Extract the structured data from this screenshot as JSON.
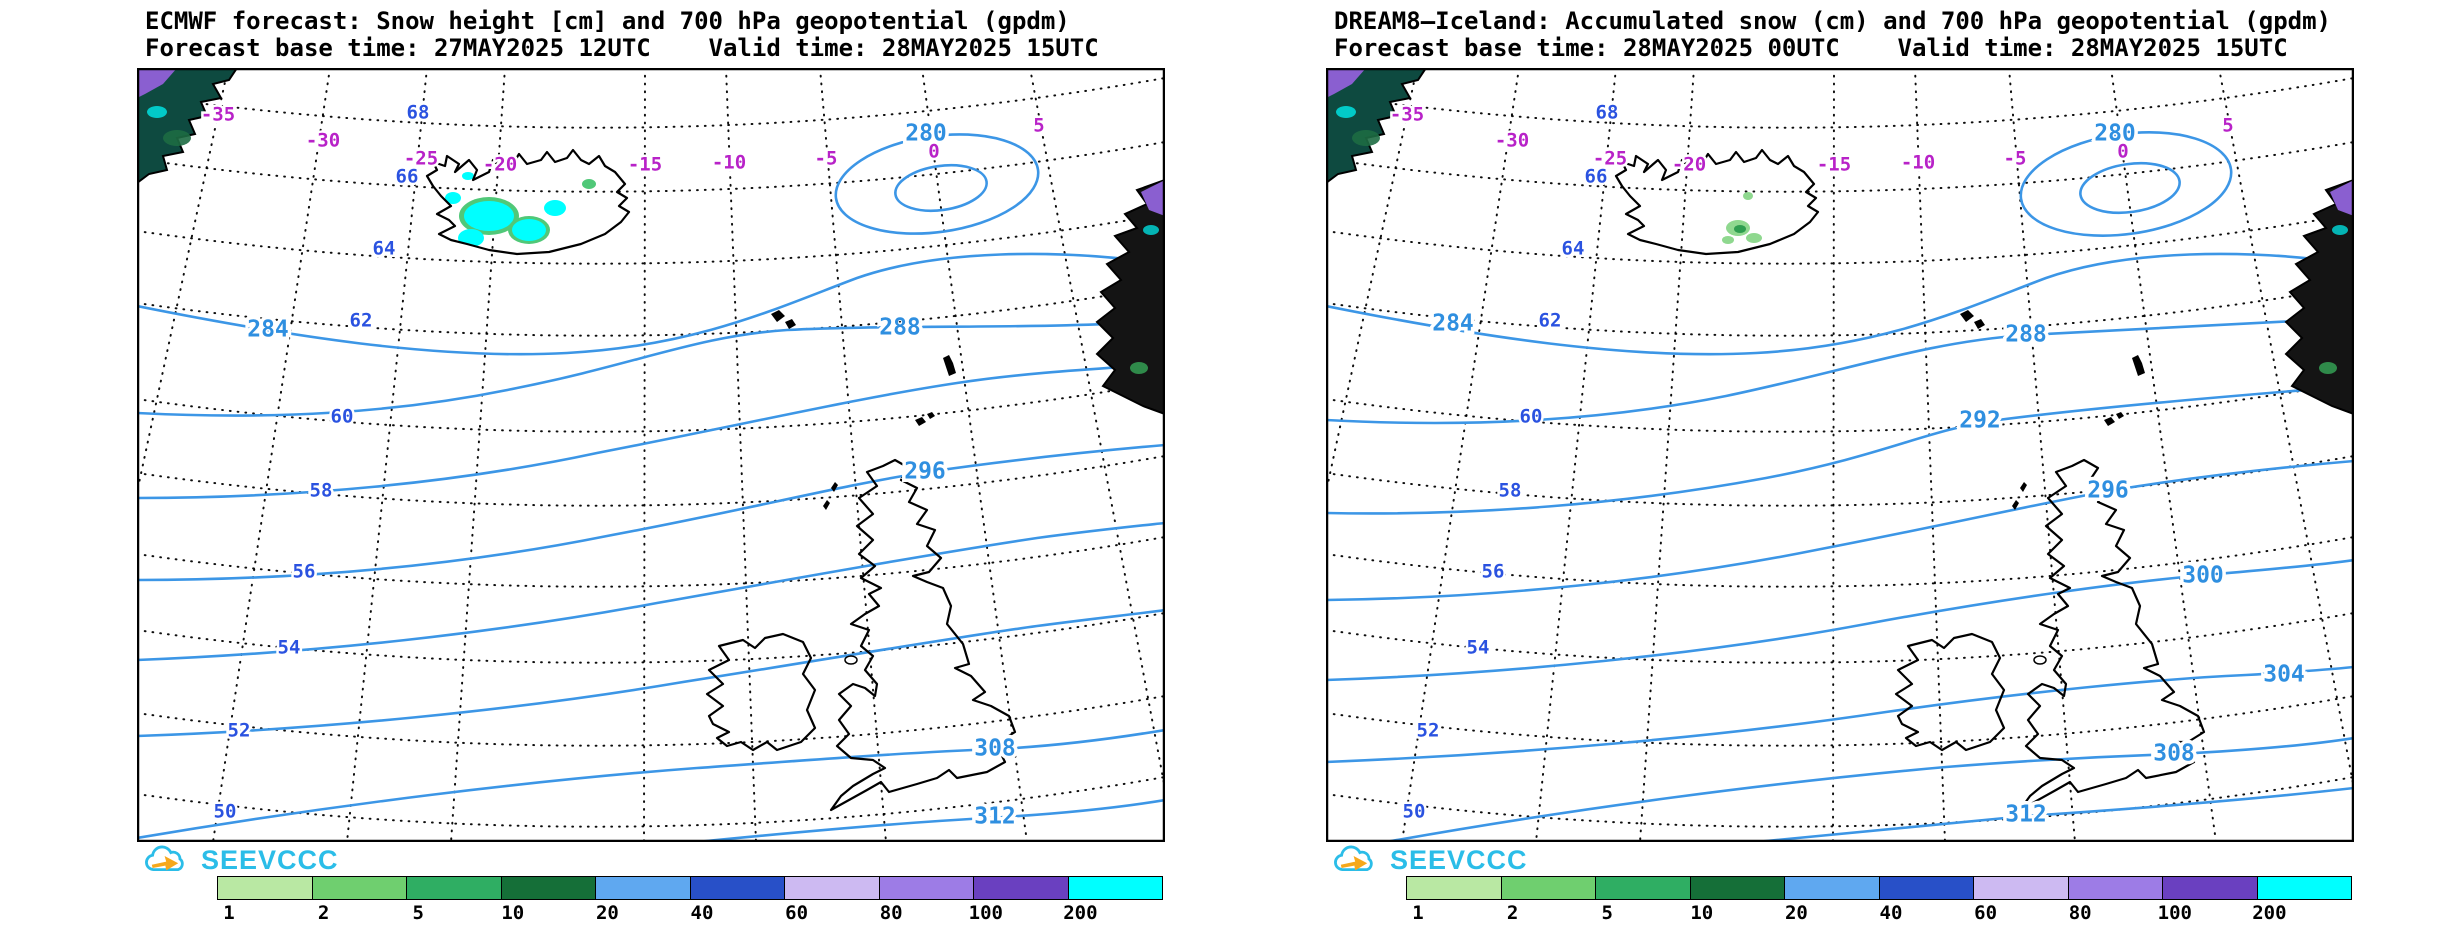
{
  "panels": [
    {
      "title_line1": "ECMWF forecast: Snow height [cm] and 700 hPa geopotential (gpdm)",
      "title_line2": "Forecast base time: 27MAY2025 12UTC    Valid time: 28MAY2025 15UTC",
      "contour_labels": {
        "c280": "280",
        "c284": "284",
        "c288": "288",
        "c296": "296",
        "c308": "308",
        "c312": "312"
      }
    },
    {
      "title_line1": "DREAM8–Iceland: Accumulated snow (cm) and 700 hPa geopotential (gpdm)",
      "title_line2": "Forecast base time: 28MAY2025 00UTC    Valid time: 28MAY2025 15UTC",
      "contour_labels": {
        "c280": "280",
        "c284": "284",
        "c288": "288",
        "c292": "292",
        "c296": "296",
        "c300": "300",
        "c304": "304",
        "c308": "308",
        "c312": "312"
      }
    }
  ],
  "graticule": {
    "lat_labels": [
      "68",
      "66",
      "64",
      "62",
      "60",
      "58",
      "56",
      "54",
      "52",
      "50"
    ],
    "lon_labels": [
      "-35",
      "-30",
      "-25",
      "-20",
      "-15",
      "-10",
      "-5",
      "0",
      "5"
    ]
  },
  "branding": {
    "logo_text": "SEEVCCC"
  },
  "colorbar": {
    "labels": [
      "1",
      "2",
      "5",
      "10",
      "20",
      "40",
      "60",
      "80",
      "100",
      "200"
    ],
    "colors": [
      "#b9e8a3",
      "#6fcf6f",
      "#2fae63",
      "#156f38",
      "#5fa8f0",
      "#2850c8",
      "#cdbaf2",
      "#9d7ce6",
      "#6a40c0",
      "#00ffff"
    ]
  },
  "chart_data": {
    "type": "map-contour",
    "description": "Two side-by-side snow and 700 hPa geopotential forecast maps over the North Atlantic (Greenland corner, Iceland, Faroes, British Isles, Norway coast)",
    "maps": [
      {
        "model": "ECMWF",
        "snow_field": "Snow height [cm]",
        "contour_field": "700 hPa geopotential (gpdm)",
        "base_time": "27MAY2025 12UTC",
        "valid_time": "28MAY2025 15UTC",
        "contour_levels_gpdm": [
          280,
          284,
          288,
          292,
          296,
          300,
          304,
          308,
          312
        ],
        "labeled_contours": [
          280,
          284,
          288,
          296,
          308,
          312
        ],
        "low_center": "closed 280 gpdm low northeast of Iceland",
        "snow_areas": "cyan/blue 20-200+ cm snow over central-western Iceland icecaps, dark shading over Greenland and Norwegian mountains"
      },
      {
        "model": "DREAM8-Iceland",
        "snow_field": "Accumulated snow (cm)",
        "contour_field": "700 hPa geopotential (gpdm)",
        "base_time": "28MAY2025 00UTC",
        "valid_time": "28MAY2025 15UTC",
        "contour_levels_gpdm": [
          280,
          284,
          288,
          292,
          296,
          300,
          304,
          308,
          312
        ],
        "labeled_contours": [
          280,
          284,
          288,
          292,
          296,
          300,
          304,
          308,
          312
        ],
        "low_center": "closed 280 gpdm low northeast of Iceland",
        "snow_areas": "small green 1-10 cm accumulated snow patches over central Iceland highlands, shading over Greenland and Norwegian mountains"
      }
    ],
    "lat_ticks_deg": [
      68,
      66,
      64,
      62,
      60,
      58,
      56,
      54,
      52,
      50
    ],
    "lon_ticks_deg": [
      -35,
      -30,
      -25,
      -20,
      -15,
      -10,
      -5,
      0,
      5
    ],
    "snow_scale_cm": [
      1,
      2,
      5,
      10,
      20,
      40,
      60,
      80,
      100,
      200
    ]
  }
}
